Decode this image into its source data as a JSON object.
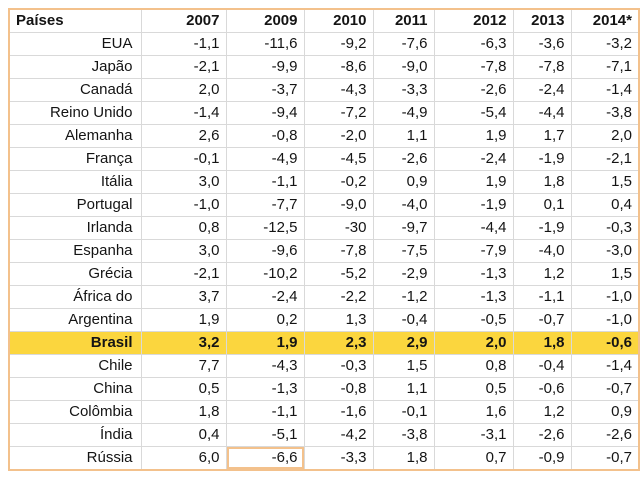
{
  "colors": {
    "highlight_yellow": "#fbd63e",
    "outer_border": "#f3c18c",
    "gridline": "#d9d9d9",
    "selected_cell_border": "#f3c18c",
    "text": "#141414"
  },
  "chart_data": {
    "type": "table",
    "title": "",
    "columns": [
      "Países",
      "2007",
      "2009",
      "2010",
      "2011",
      "2012",
      "2013",
      "2014*"
    ],
    "rows": [
      {
        "country": "EUA",
        "values": [
          "-1,1",
          "-11,6",
          "-9,2",
          "-7,6",
          "-6,3",
          "-3,6",
          "-3,2"
        ],
        "highlight": false
      },
      {
        "country": "Japão",
        "values": [
          "-2,1",
          "-9,9",
          "-8,6",
          "-9,0",
          "-7,8",
          "-7,8",
          "-7,1"
        ],
        "highlight": false
      },
      {
        "country": "Canadá",
        "values": [
          "2,0",
          "-3,7",
          "-4,3",
          "-3,3",
          "-2,6",
          "-2,4",
          "-1,4"
        ],
        "highlight": false
      },
      {
        "country": "Reino Unido",
        "values": [
          "-1,4",
          "-9,4",
          "-7,2",
          "-4,9",
          "-5,4",
          "-4,4",
          "-3,8"
        ],
        "highlight": false
      },
      {
        "country": "Alemanha",
        "values": [
          "2,6",
          "-0,8",
          "-2,0",
          "1,1",
          "1,9",
          "1,7",
          "2,0"
        ],
        "highlight": false
      },
      {
        "country": "França",
        "values": [
          "-0,1",
          "-4,9",
          "-4,5",
          "-2,6",
          "-2,4",
          "-1,9",
          "-2,1"
        ],
        "highlight": false
      },
      {
        "country": "Itália",
        "values": [
          "3,0",
          "-1,1",
          "-0,2",
          "0,9",
          "1,9",
          "1,8",
          "1,5"
        ],
        "highlight": false
      },
      {
        "country": "Portugal",
        "values": [
          "-1,0",
          "-7,7",
          "-9,0",
          "-4,0",
          "-1,9",
          "0,1",
          "0,4"
        ],
        "highlight": false
      },
      {
        "country": "Irlanda",
        "values": [
          "0,8",
          "-12,5",
          "-30",
          "-9,7",
          "-4,4",
          "-1,9",
          "-0,3"
        ],
        "highlight": false
      },
      {
        "country": "Espanha",
        "values": [
          "3,0",
          "-9,6",
          "-7,8",
          "-7,5",
          "-7,9",
          "-4,0",
          "-3,0"
        ],
        "highlight": false
      },
      {
        "country": "Grécia",
        "values": [
          "-2,1",
          "-10,2",
          "-5,2",
          "-2,9",
          "-1,3",
          "1,2",
          "1,5"
        ],
        "highlight": false
      },
      {
        "country": "África do",
        "values": [
          "3,7",
          "-2,4",
          "-2,2",
          "-1,2",
          "-1,3",
          "-1,1",
          "-1,0"
        ],
        "highlight": false
      },
      {
        "country": "Argentina",
        "values": [
          "1,9",
          "0,2",
          "1,3",
          "-0,4",
          "-0,5",
          "-0,7",
          "-1,0"
        ],
        "highlight": false
      },
      {
        "country": "Brasil",
        "values": [
          "3,2",
          "1,9",
          "2,3",
          "2,9",
          "2,0",
          "1,8",
          "-0,6"
        ],
        "highlight": true
      },
      {
        "country": "Chile",
        "values": [
          "7,7",
          "-4,3",
          "-0,3",
          "1,5",
          "0,8",
          "-0,4",
          "-1,4"
        ],
        "highlight": false
      },
      {
        "country": "China",
        "values": [
          "0,5",
          "-1,3",
          "-0,8",
          "1,1",
          "0,5",
          "-0,6",
          "-0,7"
        ],
        "highlight": false
      },
      {
        "country": "Colômbia",
        "values": [
          "1,8",
          "-1,1",
          "-1,6",
          "-0,1",
          "1,6",
          "1,2",
          "0,9"
        ],
        "highlight": false
      },
      {
        "country": "Índia",
        "values": [
          "0,4",
          "-5,1",
          "-4,2",
          "-3,8",
          "-3,1",
          "-2,6",
          "-2,6"
        ],
        "highlight": false
      },
      {
        "country": "Rússia",
        "values": [
          "6,0",
          "-6,6",
          "-3,3",
          "1,8",
          "0,7",
          "-0,9",
          "-0,7"
        ],
        "highlight": false
      }
    ],
    "highlighted_row": "Brasil",
    "selected_cell": {
      "row": "Rússia",
      "column": "2009",
      "value": "-6,6"
    }
  }
}
